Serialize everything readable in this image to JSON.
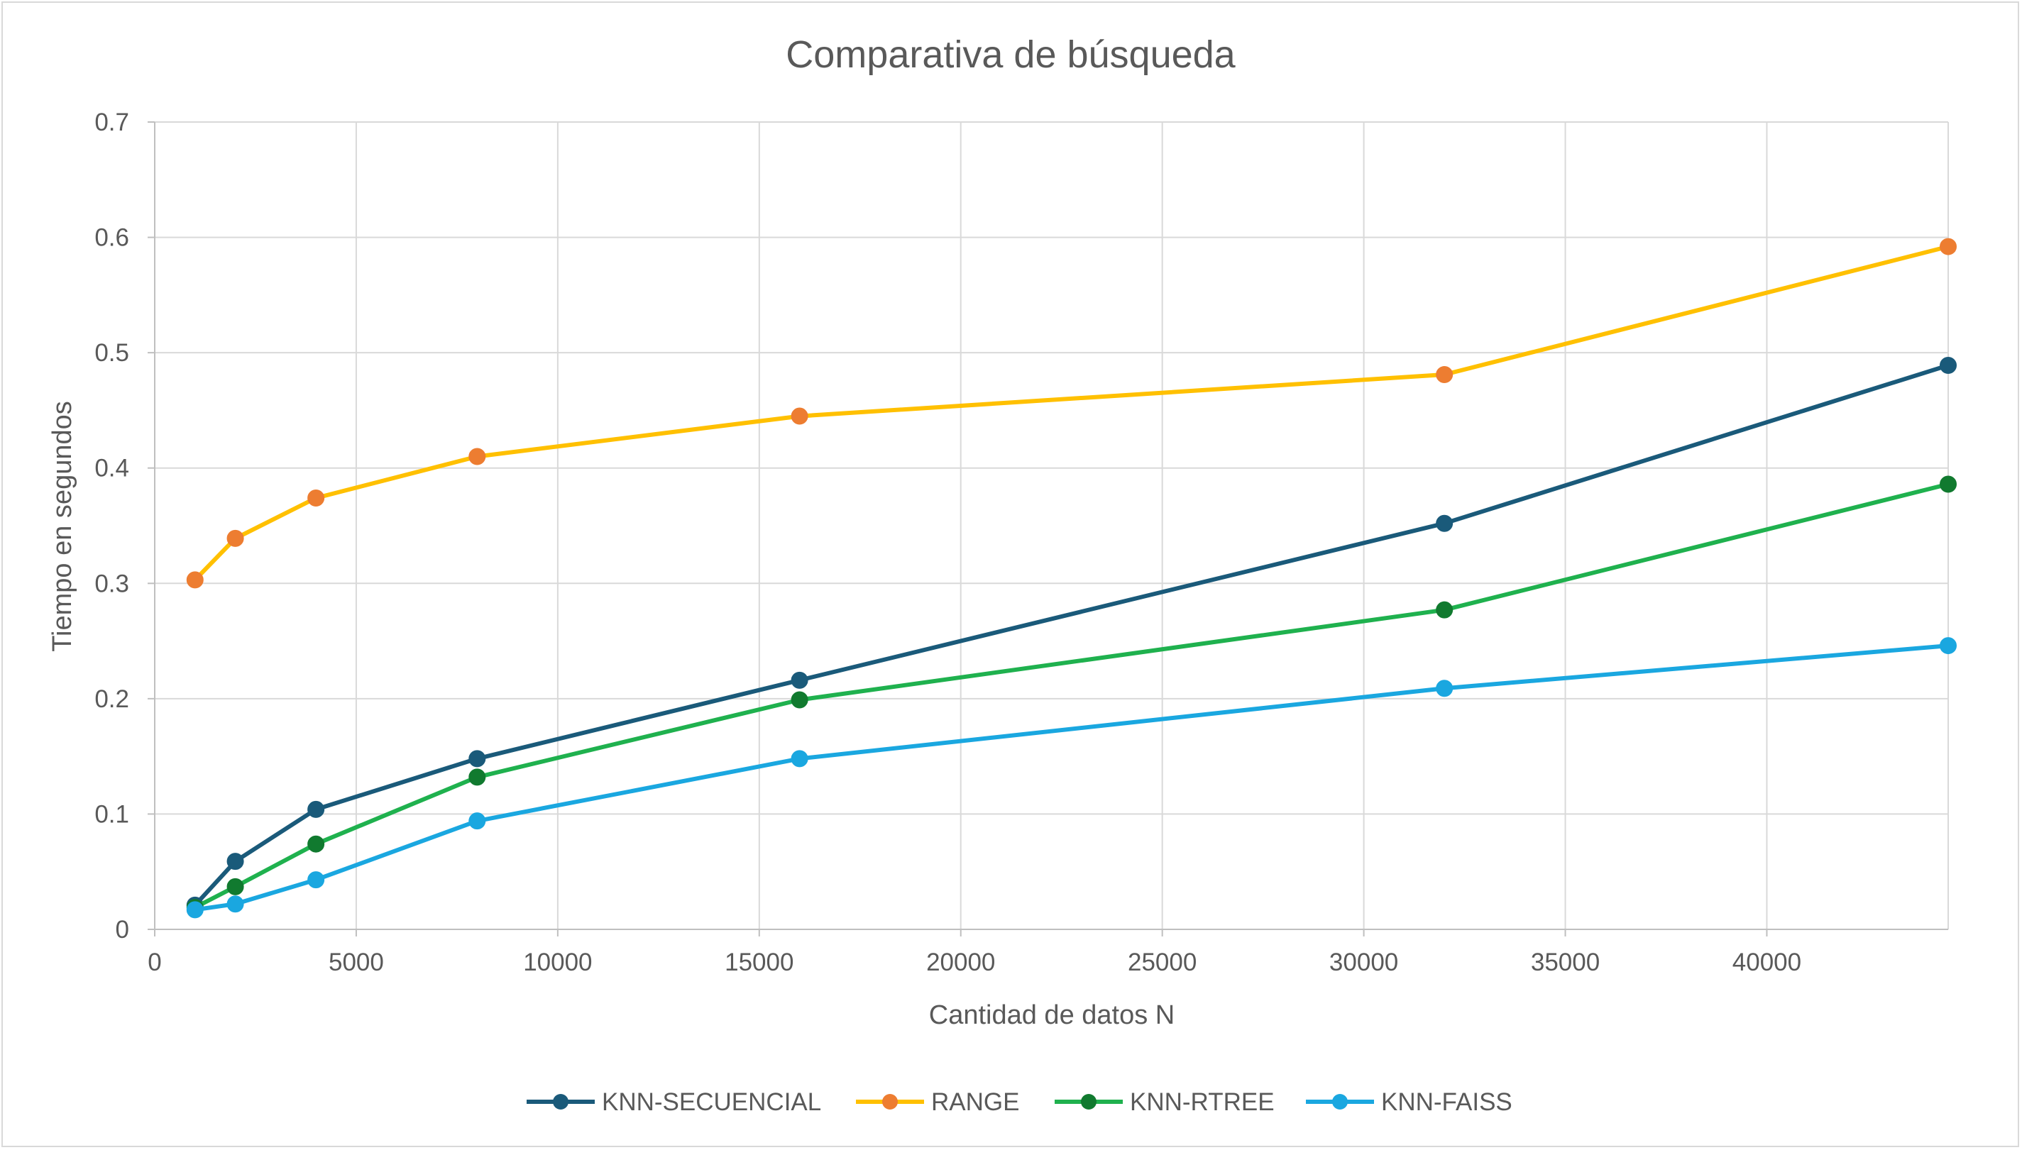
{
  "chart_data": {
    "type": "line",
    "title": "Comparativa de búsqueda",
    "xlabel": "Cantidad de datos N",
    "ylabel": "Tiempo en segundos",
    "xlim": [
      0,
      44500
    ],
    "ylim": [
      0,
      0.7
    ],
    "x_ticks": [
      0,
      5000,
      10000,
      15000,
      20000,
      25000,
      30000,
      35000,
      40000
    ],
    "y_ticks": [
      0,
      0.1,
      0.2,
      0.3,
      0.4,
      0.5,
      0.6,
      0.7
    ],
    "x_tick_labels": [
      "0",
      "5000",
      "10000",
      "15000",
      "20000",
      "25000",
      "30000",
      "35000",
      "40000"
    ],
    "y_tick_labels": [
      "0",
      "0.1",
      "0.2",
      "0.3",
      "0.4",
      "0.5",
      "0.6",
      "0.7"
    ],
    "grid": true,
    "legend_position": "bottom",
    "x": [
      1000,
      2000,
      4000,
      8000,
      16000,
      32000,
      44500
    ],
    "series": [
      {
        "name": "KNN-SECUENCIAL",
        "line_color": "#1a5a7a",
        "marker_color": "#1a5a7a",
        "values": [
          0.021,
          0.059,
          0.104,
          0.148,
          0.216,
          0.352,
          0.489
        ]
      },
      {
        "name": "RANGE",
        "line_color": "#ffc000",
        "marker_color": "#ed7d31",
        "values": [
          0.303,
          0.339,
          0.374,
          0.41,
          0.445,
          0.481,
          0.592
        ]
      },
      {
        "name": "KNN-RTREE",
        "line_color": "#1fb14e",
        "marker_color": "#117a2f",
        "values": [
          0.019,
          0.037,
          0.074,
          0.132,
          0.199,
          0.277,
          0.386
        ]
      },
      {
        "name": "KNN-FAISS",
        "line_color": "#1aa7e0",
        "marker_color": "#1aa7e0",
        "values": [
          0.017,
          0.022,
          0.043,
          0.094,
          0.148,
          0.209,
          0.246
        ]
      }
    ]
  }
}
